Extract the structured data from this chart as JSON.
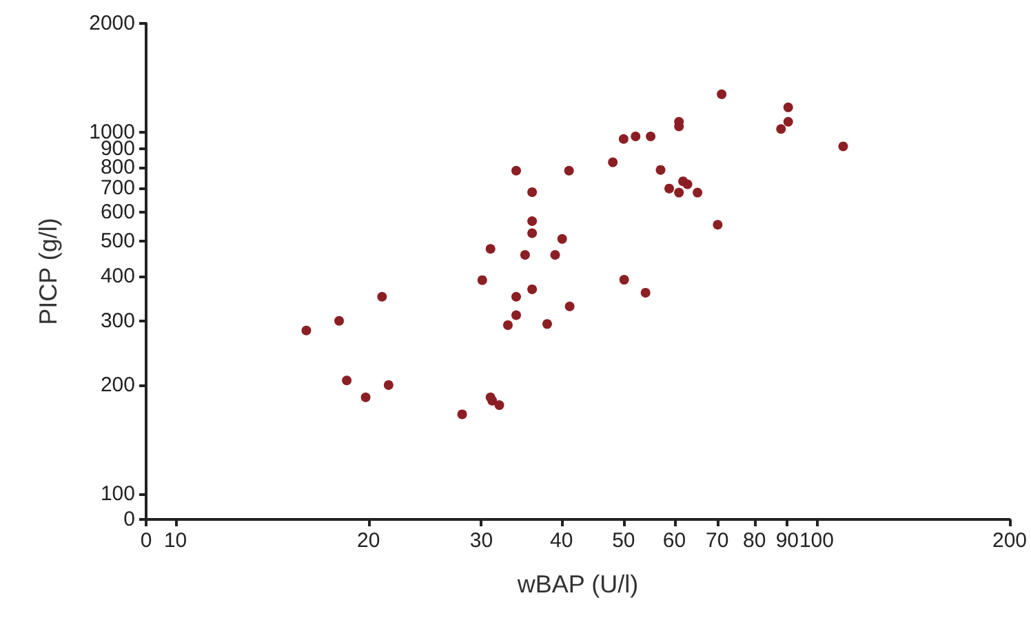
{
  "chart_data": {
    "type": "scatter",
    "xlabel": "wBAP (U/l)",
    "ylabel": "PICP (g/l)",
    "log": "xy",
    "grid": false,
    "marker": "circle",
    "xlim": [
      0,
      200
    ],
    "xticks": [
      0,
      10,
      20,
      30,
      40,
      50,
      60,
      70,
      80,
      90,
      100,
      200
    ],
    "ylim": [
      0,
      2000
    ],
    "yticks": [
      0,
      100,
      200,
      300,
      400,
      500,
      600,
      700,
      800,
      900,
      1000,
      2000
    ],
    "series": [
      {
        "color": "#8b1f24",
        "x": [
          16.0,
          18.0,
          18.5,
          19.8,
          21.0,
          21.5,
          28.0,
          30.1,
          31.0,
          31.0,
          31.2,
          32.0,
          33.0,
          34.0,
          34.0,
          34.0,
          35.1,
          36.0,
          36.0,
          36.0,
          36.0,
          38.0,
          39.1,
          40.1,
          41.1,
          41.2,
          48.1,
          50.0,
          50.1,
          52.2,
          54.1,
          55.1,
          57.1,
          58.9,
          61.0,
          61.0,
          61.0,
          61.9,
          62.9,
          65.2,
          70.1,
          71.1,
          88.0,
          90.3,
          90.3,
          110
        ],
        "values": [
          283,
          301,
          206,
          185,
          351,
          200,
          166,
          390,
          476,
          185,
          181,
          176,
          293,
          783,
          351,
          312,
          458,
          683,
          568,
          526,
          368,
          295,
          458,
          507,
          783,
          330,
          826,
          958,
          391,
          974,
          360,
          974,
          787,
          699,
          1069,
          1038,
          681,
          732,
          718,
          681,
          555,
          1274,
          1021,
          1172,
          1069,
          914
        ]
      }
    ]
  }
}
